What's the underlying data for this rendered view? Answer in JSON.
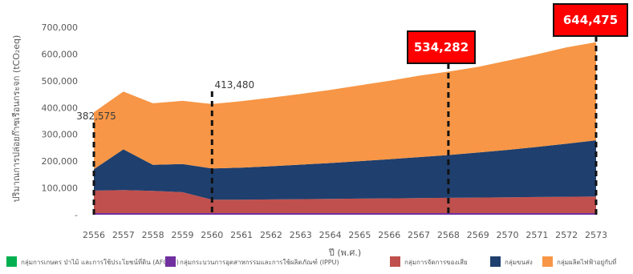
{
  "chart_data": {
    "type": "area",
    "stacked": true,
    "ylabel": "ปริมาณการปล่อยก๊าซเรือนกระจก (tCO₂eq)",
    "xlabel": "ปี (พ.ศ.)",
    "x": [
      "2556",
      "2557",
      "2558",
      "2559",
      "2560",
      "2561",
      "2562",
      "2563",
      "2564",
      "2565",
      "2566",
      "2567",
      "2568",
      "2569",
      "2570",
      "2571",
      "2572",
      "2573"
    ],
    "ylim": [
      0,
      700000
    ],
    "y_ticks": [
      "-",
      "100,000",
      "200,000",
      "300,000",
      "400,000",
      "500,000",
      "600,000",
      "700,000"
    ],
    "grid": false,
    "legend_position": "bottom",
    "series": [
      {
        "name": "กลุ่มการเกษตร ป่าไม้ และการใช้ประโยชน์ที่ดิน (AFOLU)",
        "color": "#00b050",
        "values": [
          0,
          0,
          0,
          0,
          0,
          0,
          0,
          0,
          0,
          0,
          0,
          0,
          0,
          0,
          0,
          0,
          0,
          0
        ]
      },
      {
        "name": "กลุ่มกระบวนการอุตสาหกรรมและการใช้ผลิตภัณฑ์ (IPPU)",
        "color": "#7030a0",
        "values": [
          6000,
          6000,
          6000,
          6000,
          6000,
          6000,
          6000,
          6000,
          6000,
          6000,
          6000,
          6000,
          6000,
          6000,
          6000,
          6000,
          6000,
          6000
        ]
      },
      {
        "name": "กลุ่มการจัดการของเสีย",
        "color": "#c0504d",
        "values": [
          84000,
          86000,
          83000,
          78000,
          50000,
          50000,
          51000,
          52000,
          53000,
          54000,
          55000,
          56000,
          57000,
          58000,
          59000,
          60000,
          61000,
          62000
        ]
      },
      {
        "name": "กลุ่มขนส่ง",
        "color": "#1f3f6e",
        "values": [
          80000,
          152000,
          97000,
          105000,
          117000,
          120000,
          124000,
          129000,
          134000,
          140000,
          146000,
          153000,
          160000,
          168000,
          177000,
          187000,
          198000,
          210000
        ]
      },
      {
        "name": "กลุ่มผลิตไฟฟ้าอยู่กับที่",
        "color": "#f79646",
        "values": [
          212575,
          216000,
          230000,
          236000,
          240480,
          248000,
          256000,
          264000,
          273000,
          283000,
          293000,
          304000,
          311282,
          320000,
          333000,
          346000,
          360000,
          366475
        ]
      }
    ],
    "annotations": [
      {
        "x": "2556",
        "label": "382,575",
        "style": "plain"
      },
      {
        "x": "2560",
        "label": "413,480",
        "style": "plain"
      },
      {
        "x": "2568",
        "label": "534,282",
        "style": "box"
      },
      {
        "x": "2573",
        "label": "644,475",
        "style": "box"
      }
    ]
  }
}
